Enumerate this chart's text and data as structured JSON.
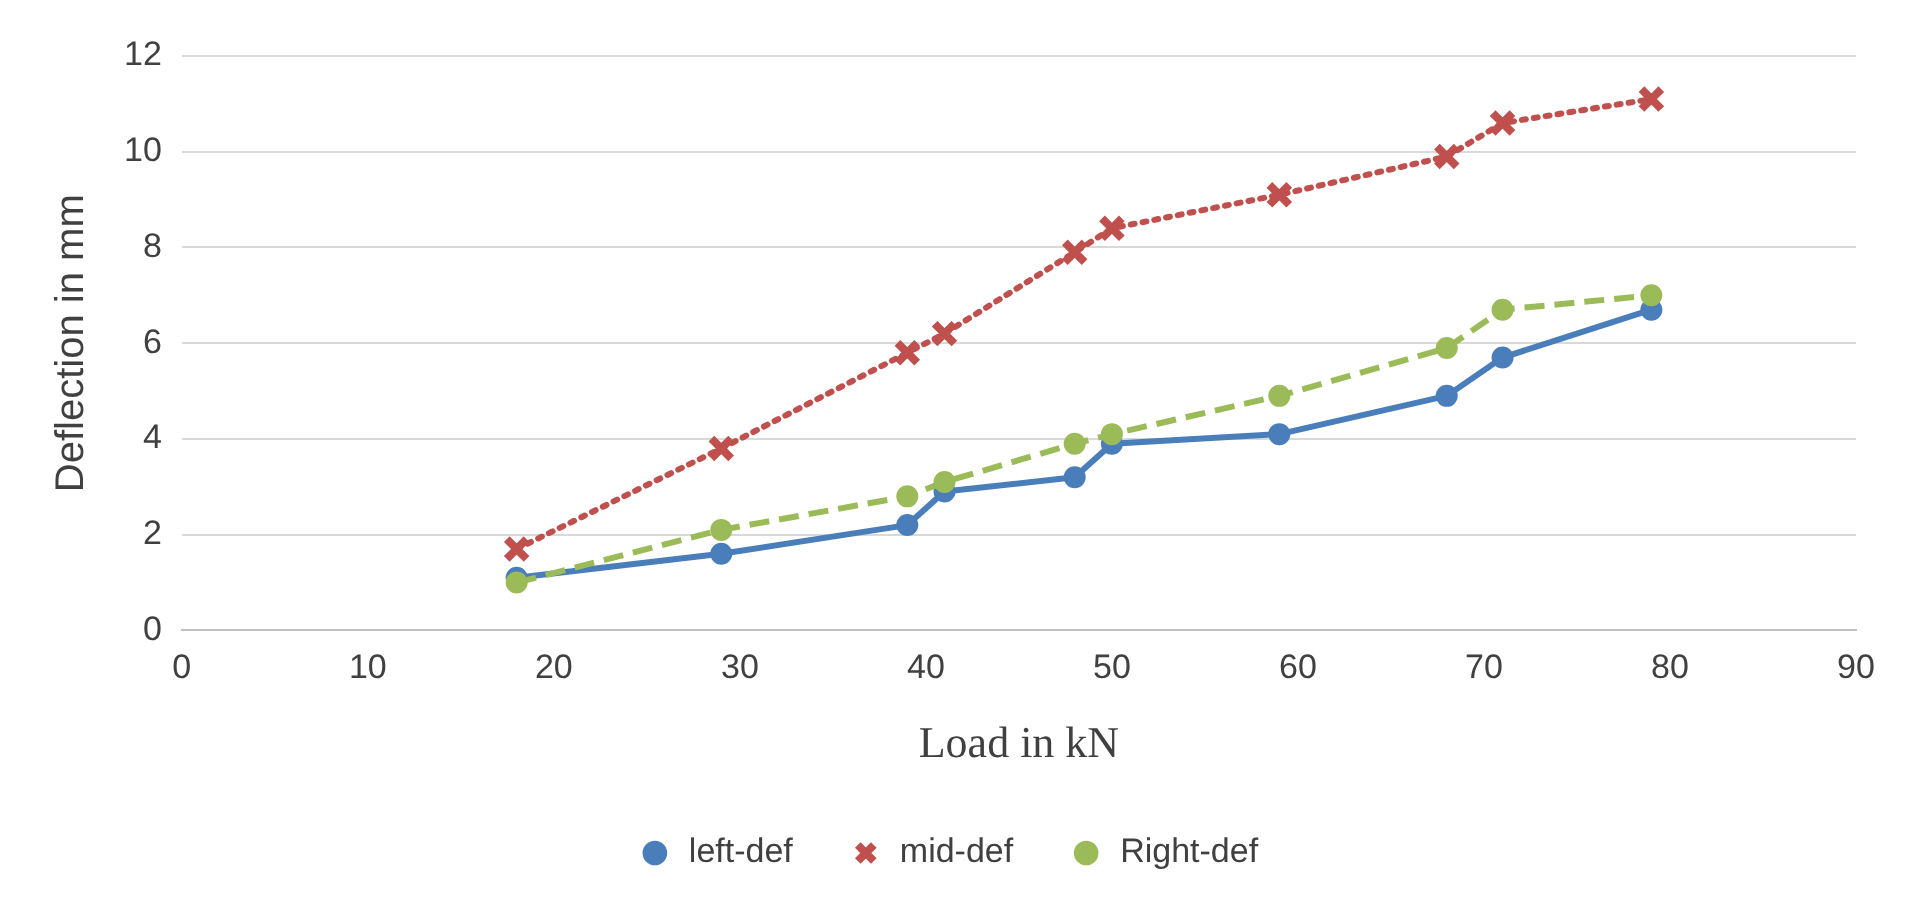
{
  "chart_data": {
    "type": "line",
    "xlabel": "Load in kN",
    "ylabel": "Deflection in mm",
    "x": [
      18,
      29,
      39,
      41,
      48,
      50,
      59,
      68,
      71,
      79
    ],
    "xlim": [
      0,
      90
    ],
    "xticks": [
      0,
      10,
      20,
      30,
      40,
      50,
      60,
      70,
      80,
      90
    ],
    "ylim": [
      0,
      12
    ],
    "yticks": [
      0,
      2,
      4,
      6,
      8,
      10,
      12
    ],
    "grid": "y",
    "legend": "bottom",
    "series": [
      {
        "name": "left-def",
        "color": "#4a7ebb",
        "line_style": "solid",
        "marker": "circle",
        "values": [
          1.1,
          1.6,
          2.2,
          2.9,
          3.2,
          3.9,
          4.1,
          4.9,
          5.7,
          6.7
        ]
      },
      {
        "name": "mid-def",
        "color": "#c0504d",
        "line_style": "dotted",
        "marker": "cross",
        "values": [
          1.7,
          3.8,
          5.8,
          6.2,
          7.9,
          8.4,
          9.1,
          9.9,
          10.6,
          11.1
        ]
      },
      {
        "name": "Right-def",
        "color": "#9bbb59",
        "line_style": "dashed",
        "marker": "circle",
        "values": [
          1.0,
          2.1,
          2.8,
          3.1,
          3.9,
          4.1,
          4.9,
          5.9,
          6.7,
          7.0
        ]
      }
    ]
  }
}
